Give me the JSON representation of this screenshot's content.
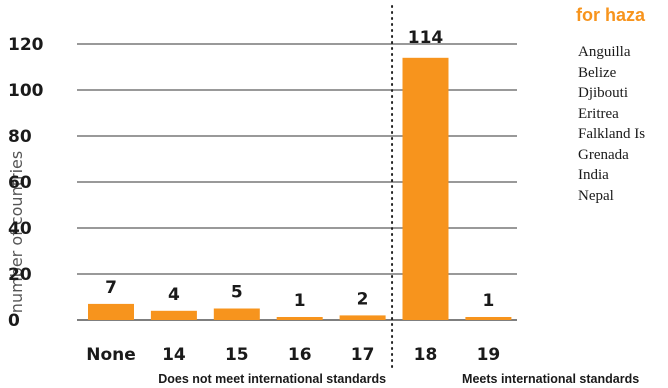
{
  "panel": {
    "title": "for haza",
    "countries": [
      "Anguilla",
      "Belize",
      "Djibouti",
      "Eritrea",
      "Falkland Is",
      "Grenada",
      "India",
      "Nepal"
    ]
  },
  "colors": {
    "bar": "#f7941d",
    "grid": "#333333",
    "text": "#1a1a1a",
    "accent": "#f7941d"
  },
  "chart_data": {
    "type": "bar",
    "categories": [
      "None",
      "14",
      "15",
      "16",
      "17",
      "18",
      "19"
    ],
    "values": [
      7,
      4,
      5,
      1,
      2,
      114,
      1
    ],
    "data_labels": [
      "7",
      "4",
      "5",
      "1",
      "2",
      "114",
      "1"
    ],
    "title": "",
    "xlabel": "",
    "ylabel": "number of countries",
    "ylim": [
      0,
      120
    ],
    "yticks": [
      0,
      20,
      40,
      60,
      80,
      100,
      120
    ],
    "grid": true,
    "divider_after_category": "17",
    "groups": [
      {
        "label": "Does not meet international standards",
        "categories": [
          "None",
          "14",
          "15",
          "16",
          "17"
        ]
      },
      {
        "label": "Meets international standards",
        "categories": [
          "18",
          "19"
        ]
      }
    ]
  }
}
